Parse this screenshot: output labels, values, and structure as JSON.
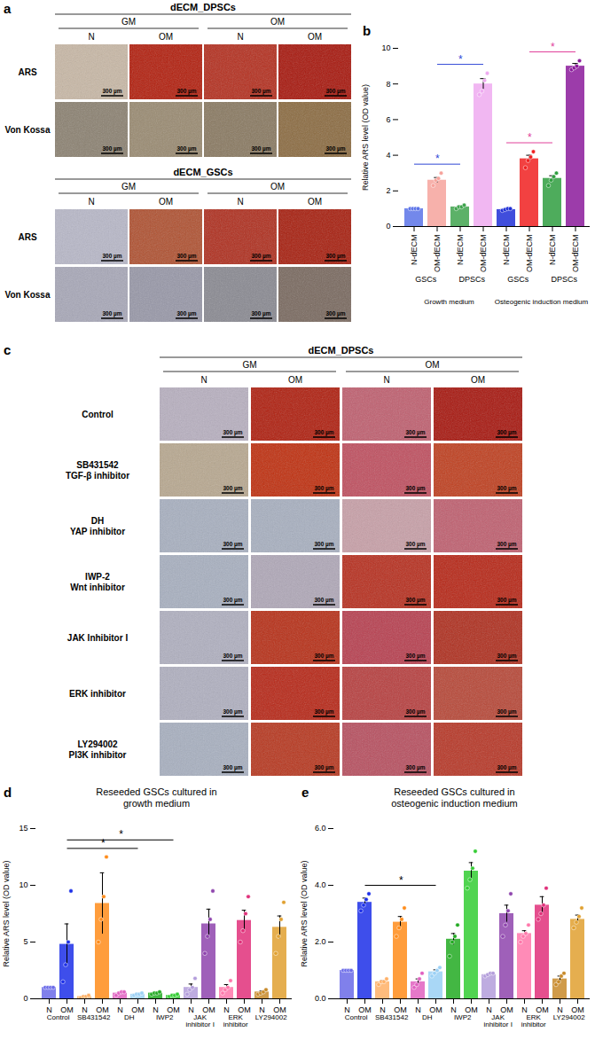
{
  "scale_bar": "300 µm",
  "image_panels": [
    {
      "panel_label": "a",
      "blocks": [
        {
          "title": "dECM_DPSCs",
          "media": [
            "GM",
            "OM"
          ],
          "columns": [
            "N",
            "OM",
            "N",
            "OM"
          ],
          "rows": [
            {
              "label": "ARS",
              "colors": [
                "#c8b8a6",
                "#b3200f",
                "#b53020",
                "#a8180e"
              ]
            },
            {
              "label": "Von Kossa",
              "colors": [
                "#8c8272",
                "#9a8b72",
                "#8a7a62",
                "#8c6c42"
              ]
            }
          ]
        },
        {
          "title": "dECM_GSCs",
          "media": [
            "GM",
            "OM"
          ],
          "columns": [
            "N",
            "OM",
            "N",
            "OM"
          ],
          "rows": [
            {
              "label": "ARS",
              "colors": [
                "#b8b8c8",
                "#b05232",
                "#b03020",
                "#a82010"
              ]
            },
            {
              "label": "Von Kossa",
              "colors": [
                "#a8a8b8",
                "#9898a8",
                "#8a8a92",
                "#7a6a60"
              ]
            }
          ]
        }
      ]
    },
    {
      "panel_label": "c",
      "blocks": [
        {
          "title": "dECM_DPSCs",
          "media": [
            "GM",
            "OM"
          ],
          "columns": [
            "N",
            "OM",
            "N",
            "OM"
          ],
          "rows": [
            {
              "label": "Control",
              "colors": [
                "#b8b0c0",
                "#b02010",
                "#c06070",
                "#a81810"
              ]
            },
            {
              "label": "SB431542\nTGF-β inhibitor",
              "colors": [
                "#b8a890",
                "#c03010",
                "#c05060",
                "#c04020"
              ]
            },
            {
              "label": "DH\nYAP inhibitor",
              "colors": [
                "#a8b0c0",
                "#a8b0c0",
                "#c8a0a8",
                "#c06070"
              ]
            },
            {
              "label": "IWP-2\nWnt inhibitor",
              "colors": [
                "#a8b0c0",
                "#b0a8b8",
                "#b83020",
                "#b82818"
              ]
            },
            {
              "label": "JAK Inhibitor I",
              "colors": [
                "#b0b0c0",
                "#b83018",
                "#b84050",
                "#b03020"
              ]
            },
            {
              "label": "ERK inhibitor",
              "colors": [
                "#b0b0c0",
                "#b82818",
                "#b84040",
                "#b84838"
              ]
            },
            {
              "label": "LY294002\nPI3K inhibitor",
              "colors": [
                "#a8b0c0",
                "#b83820",
                "#b85060",
                "#b83828"
              ]
            }
          ]
        }
      ]
    }
  ],
  "chart_data": [
    {
      "panel_label": "b",
      "type": "bar",
      "y_label": "Relative ARS level (OD value)",
      "categories": [
        "N-dECM",
        "OM-dECM",
        "N-dECM",
        "OM-dECM",
        "N-dECM",
        "OM-dECM",
        "N-dECM",
        "OM-dECM"
      ],
      "subgroups": [
        "GSCs",
        "GSCs",
        "DPSCs",
        "DPSCs",
        "GSCs",
        "GSCs",
        "DPSCs",
        "DPSCs"
      ],
      "groups": [
        "Growth medium",
        "Growth medium",
        "Growth medium",
        "Growth medium",
        "Osteogenic induction medium",
        "Osteogenic induction medium",
        "Osteogenic induction medium",
        "Osteogenic induction medium"
      ],
      "values": [
        1.0,
        2.6,
        1.1,
        8.0,
        0.95,
        3.8,
        2.7,
        9.0
      ],
      "errors": [
        0,
        0.15,
        0.05,
        0.3,
        0.02,
        0.2,
        0.15,
        0.15
      ],
      "points": [
        [
          1.0,
          1.0,
          1.0,
          1.0
        ],
        [
          2.3,
          2.6,
          2.7,
          3.0
        ],
        [
          1.0,
          1.1,
          1.1,
          1.2
        ],
        [
          7.4,
          7.6,
          8.2,
          8.6
        ],
        [
          0.9,
          0.95,
          1.0,
          1.0
        ],
        [
          3.3,
          3.7,
          3.9,
          4.2
        ],
        [
          2.3,
          2.6,
          2.8,
          3.0
        ],
        [
          8.8,
          8.9,
          9.0,
          9.3
        ]
      ],
      "colors": [
        "#5b73e8",
        "#f6a39c",
        "#3fa34d",
        "#eeaaf0",
        "#1f2fd6",
        "#f02020",
        "#2f9e3f",
        "#8b1a9b"
      ],
      "ylim": [
        0,
        10
      ],
      "yticks": [
        0,
        2,
        4,
        6,
        8,
        10
      ],
      "significance": [
        {
          "between": [
            0,
            2
          ],
          "label": "*",
          "color": "#2f46d6"
        },
        {
          "between": [
            1,
            3
          ],
          "label": "*",
          "color": "#2f46d6"
        },
        {
          "between": [
            4,
            6
          ],
          "label": "*",
          "color": "#e0409a"
        },
        {
          "between": [
            5,
            7
          ],
          "label": "*",
          "color": "#e0409a"
        }
      ]
    },
    {
      "panel_label": "d",
      "type": "bar",
      "title": "Reseeded GSCs cultured in\ngrowth medium",
      "y_label": "Relative ARS level (OD value)",
      "categories": [
        "N",
        "OM",
        "N",
        "OM",
        "N",
        "OM",
        "N",
        "OM",
        "N",
        "OM",
        "N",
        "OM",
        "N",
        "OM"
      ],
      "groups": [
        "Control",
        "Control",
        "SB431542",
        "SB431542",
        "DH",
        "DH",
        "IWP2",
        "IWP2",
        "JAK inhibitor I",
        "JAK inhibitor I",
        "ERK inhibitor",
        "ERK inhibitor",
        "LY294002",
        "LY294002"
      ],
      "values": [
        1.0,
        4.8,
        0.2,
        8.4,
        0.5,
        0.4,
        0.5,
        0.3,
        1.0,
        6.6,
        1.0,
        6.9,
        0.6,
        6.3
      ],
      "errors": [
        0,
        1.8,
        0.05,
        2.7,
        0.1,
        0.05,
        0.05,
        0.05,
        0.3,
        1.3,
        0.25,
        0.9,
        0.1,
        1.0
      ],
      "points": [
        [
          1.0,
          1.0,
          1.0,
          1.0
        ],
        [
          1.5,
          3.0,
          5.0,
          9.5
        ],
        [
          0.1,
          0.2,
          0.2,
          0.3
        ],
        [
          5.0,
          7.0,
          9.0,
          12.5
        ],
        [
          0.3,
          0.5,
          0.6,
          0.6
        ],
        [
          0.3,
          0.4,
          0.4,
          0.5
        ],
        [
          0.4,
          0.5,
          0.5,
          0.6
        ],
        [
          0.2,
          0.3,
          0.3,
          0.4
        ],
        [
          0.4,
          0.8,
          1.0,
          1.8
        ],
        [
          4.0,
          5.5,
          7.0,
          9.5
        ],
        [
          0.5,
          0.8,
          1.0,
          1.6
        ],
        [
          5.0,
          6.0,
          7.5,
          9.0
        ],
        [
          0.4,
          0.5,
          0.6,
          0.8
        ],
        [
          4.0,
          5.5,
          7.0,
          8.5
        ]
      ],
      "colors": [
        "#6a6ae8",
        "#1c2fe8",
        "#ffb066",
        "#ff8c1a",
        "#e060c0",
        "#9ad0f5",
        "#22aa22",
        "#33cc33",
        "#b39ddb",
        "#8e44ad",
        "#ff77aa",
        "#e0307a",
        "#c88a2a",
        "#e0a030"
      ],
      "ylim": [
        0,
        15
      ],
      "yticks": [
        0,
        5,
        10,
        15
      ],
      "significance": [
        {
          "between": [
            1,
            5
          ],
          "label": "*",
          "color": "#000000"
        },
        {
          "between": [
            1,
            7
          ],
          "label": "*",
          "color": "#000000"
        }
      ]
    },
    {
      "panel_label": "e",
      "type": "bar",
      "title": "Reseeded GSCs cultured in\nosteogenic induction medium",
      "y_label": "Relative ARS level (OD value)",
      "categories": [
        "N",
        "OM",
        "N",
        "OM",
        "N",
        "OM",
        "N",
        "OM",
        "N",
        "OM",
        "N",
        "OM",
        "N",
        "OM"
      ],
      "groups": [
        "Control",
        "Control",
        "SB431542",
        "SB431542",
        "DH",
        "DH",
        "IWP2",
        "IWP2",
        "JAK inhibitor I",
        "JAK inhibitor I",
        "ERK inhibitor",
        "ERK inhibitor",
        "LY294002",
        "LY294002"
      ],
      "values": [
        1.0,
        3.4,
        0.6,
        2.7,
        0.6,
        0.95,
        2.1,
        4.5,
        0.85,
        3.0,
        2.3,
        3.3,
        0.7,
        2.8
      ],
      "errors": [
        0,
        0.15,
        0.05,
        0.2,
        0.1,
        0.07,
        0.2,
        0.3,
        0.03,
        0.3,
        0.1,
        0.3,
        0.1,
        0.15
      ],
      "points": [
        [
          1.0,
          1.0,
          1.0,
          1.0
        ],
        [
          3.1,
          3.3,
          3.5,
          3.7
        ],
        [
          0.5,
          0.6,
          0.6,
          0.7
        ],
        [
          2.2,
          2.5,
          2.8,
          3.2
        ],
        [
          0.4,
          0.5,
          0.7,
          0.9
        ],
        [
          0.8,
          0.9,
          1.0,
          1.1
        ],
        [
          1.5,
          2.0,
          2.2,
          2.6
        ],
        [
          3.9,
          4.2,
          4.6,
          5.2
        ],
        [
          0.8,
          0.85,
          0.9,
          0.9
        ],
        [
          2.2,
          2.6,
          3.1,
          3.7
        ],
        [
          2.0,
          2.2,
          2.3,
          2.6
        ],
        [
          2.8,
          3.0,
          3.3,
          3.9
        ],
        [
          0.5,
          0.6,
          0.8,
          0.9
        ],
        [
          2.5,
          2.7,
          2.9,
          3.2
        ]
      ],
      "colors": [
        "#6a6ae8",
        "#1c2fe8",
        "#ffb066",
        "#ff8c1a",
        "#e060c0",
        "#9ad0f5",
        "#22aa22",
        "#33cc33",
        "#b39ddb",
        "#8e44ad",
        "#ff77aa",
        "#e0307a",
        "#c88a2a",
        "#e0a030"
      ],
      "ylim": [
        0,
        6
      ],
      "yticks": [
        0,
        2,
        4,
        6
      ],
      "significance": [
        {
          "between": [
            1,
            5
          ],
          "label": "*",
          "color": "#000000"
        }
      ]
    }
  ]
}
